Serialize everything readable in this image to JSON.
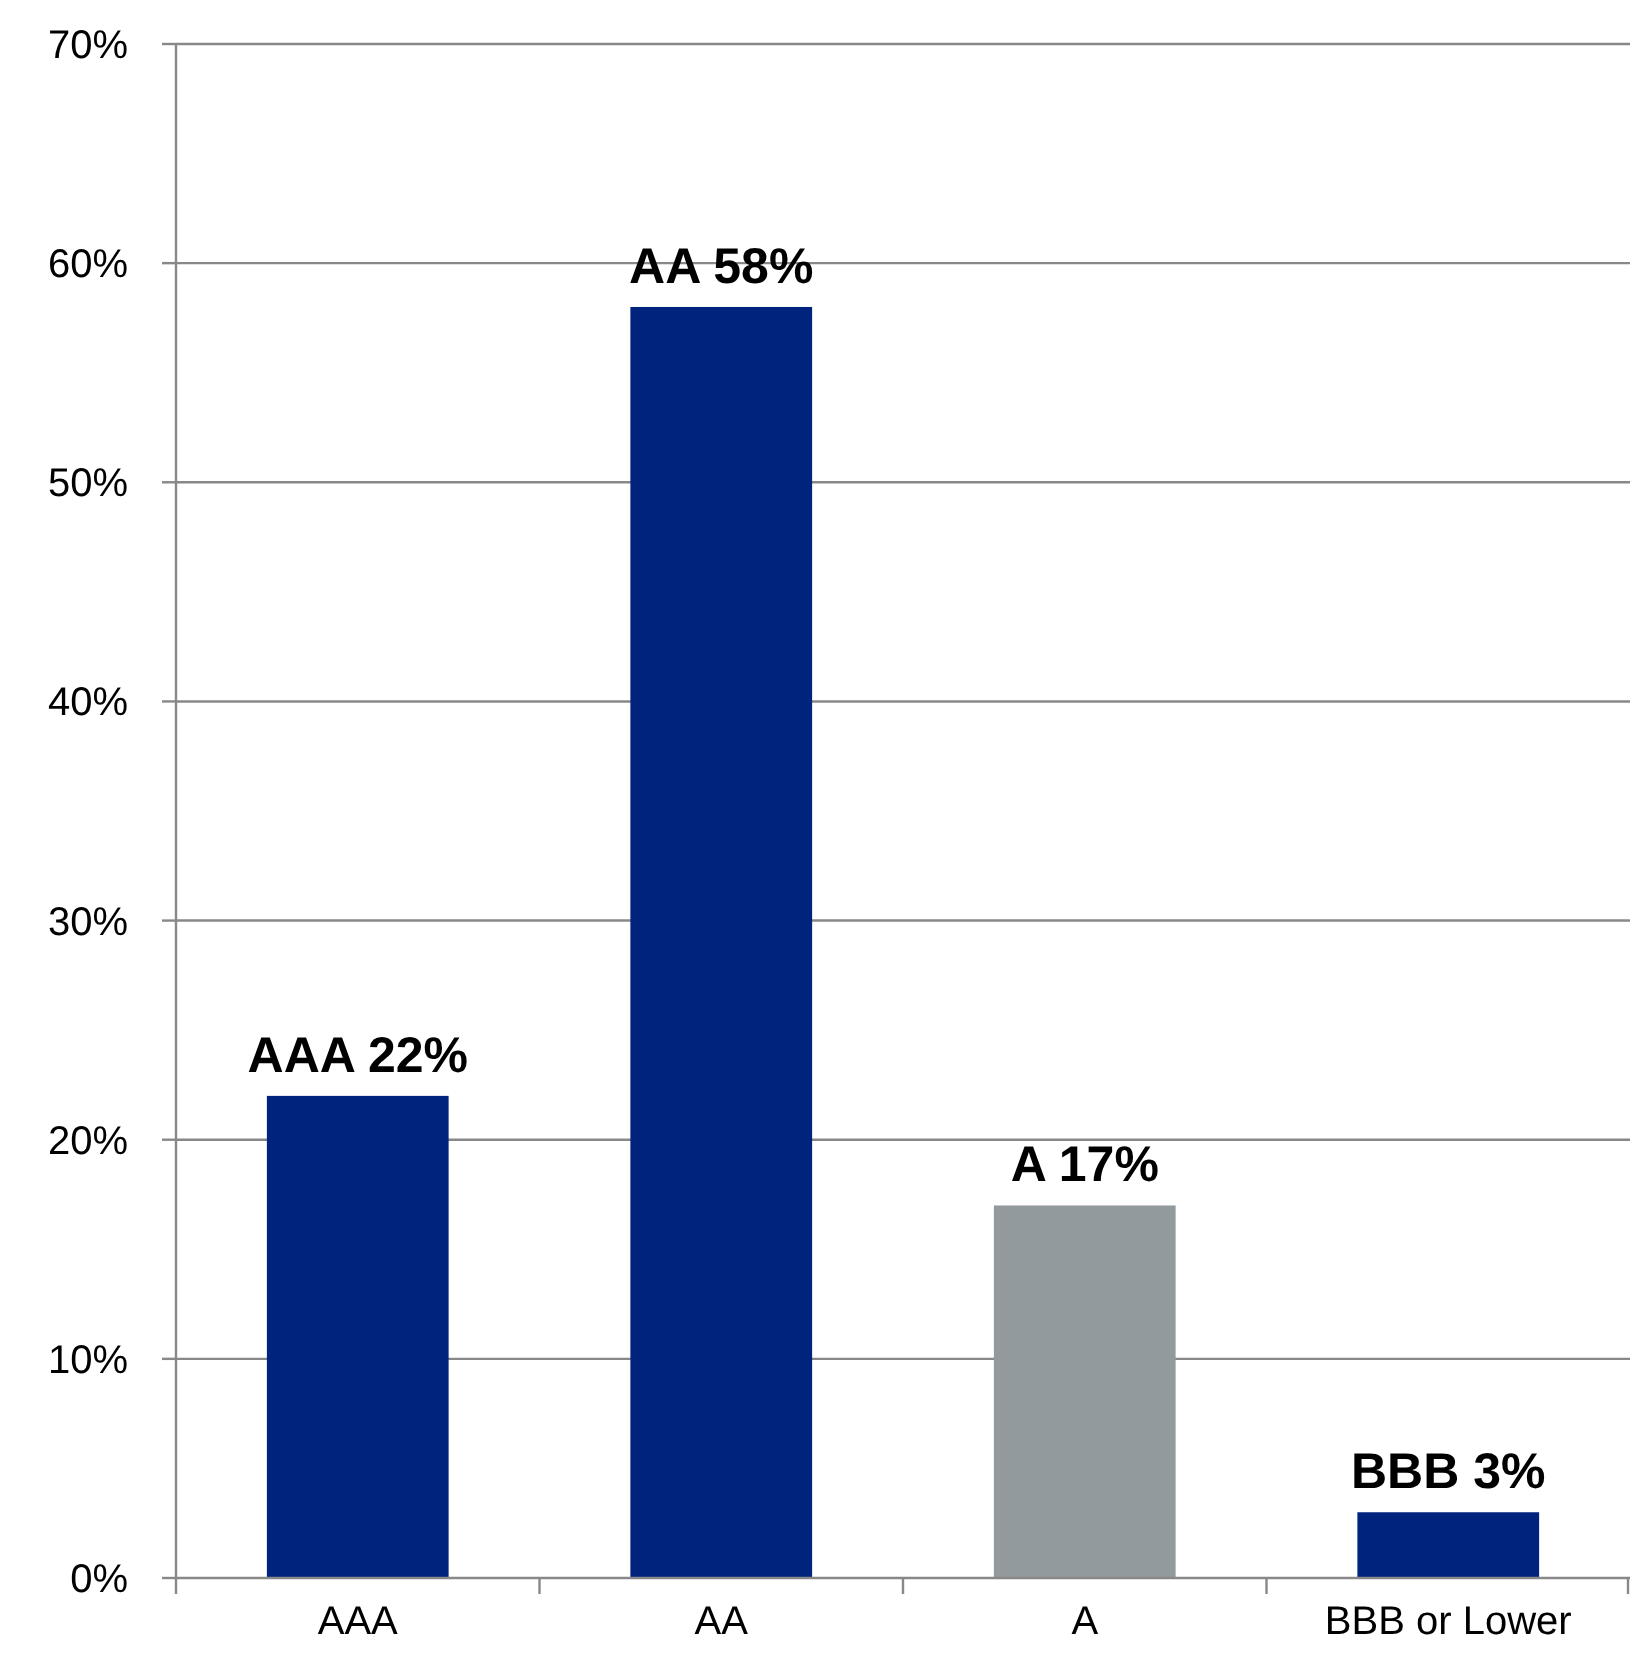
{
  "chart_data": {
    "type": "bar",
    "categories": [
      "AAA",
      "AA",
      "A",
      "BBB or Lower"
    ],
    "values": [
      22,
      58,
      17,
      3
    ],
    "colors": [
      "#00247d",
      "#00247d",
      "#939a9e",
      "#00247d"
    ],
    "value_labels": [
      "AAA 22%",
      "AA 58%",
      "A 17%",
      "BBB 3%"
    ],
    "ylim": [
      0,
      70
    ],
    "yticks": [
      {
        "value": 0,
        "label": "0%"
      },
      {
        "value": 10,
        "label": "10%"
      },
      {
        "value": 20,
        "label": "20%"
      },
      {
        "value": 30,
        "label": "30%"
      },
      {
        "value": 40,
        "label": "40%"
      },
      {
        "value": 50,
        "label": "50%"
      },
      {
        "value": 60,
        "label": "60%"
      },
      {
        "value": 70,
        "label": "70%"
      }
    ],
    "grid": "y"
  }
}
